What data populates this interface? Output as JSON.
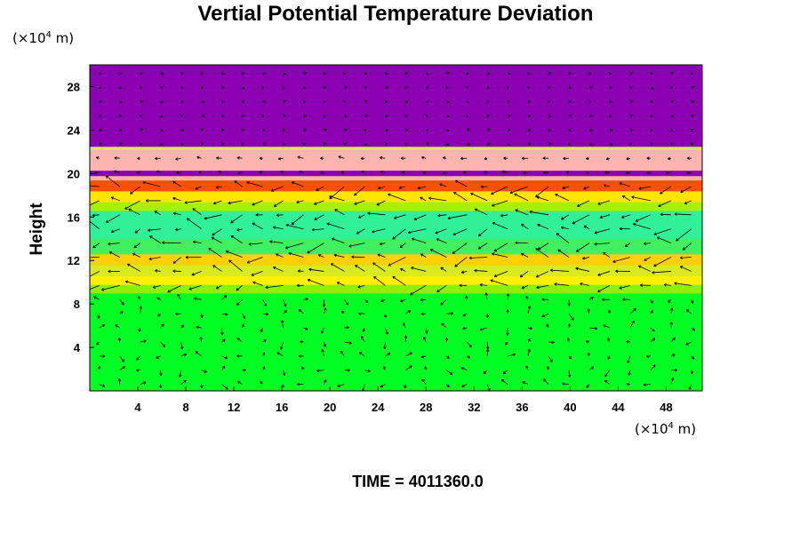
{
  "chart_data": {
    "type": "heatmap",
    "title": "Vertial Potential Temperature Deviation",
    "ylabel": "Height",
    "x_unit": {
      "prefix": "(×10",
      "exp": "4",
      "suffix": " m)"
    },
    "y_unit": {
      "prefix": "(×10",
      "exp": "4",
      "suffix": " m)"
    },
    "xlim": [
      0,
      51
    ],
    "ylim": [
      0,
      30
    ],
    "x_ticks": [
      4,
      8,
      12,
      16,
      20,
      24,
      28,
      32,
      36,
      40,
      44,
      48
    ],
    "y_ticks": [
      4,
      8,
      12,
      16,
      20,
      24,
      28
    ],
    "layers": [
      {
        "y0": 0.0,
        "y1": 9.0,
        "color": "#00ff22"
      },
      {
        "y0": 9.0,
        "y1": 9.8,
        "color": "#8cf000"
      },
      {
        "y0": 9.8,
        "y1": 10.6,
        "color": "#fff000"
      },
      {
        "y0": 10.6,
        "y1": 11.6,
        "color": "#d8ea20"
      },
      {
        "y0": 11.6,
        "y1": 12.6,
        "color": "#ffd000"
      },
      {
        "y0": 12.6,
        "y1": 14.0,
        "color": "#40f060"
      },
      {
        "y0": 14.0,
        "y1": 16.6,
        "color": "#30f098"
      },
      {
        "y0": 16.6,
        "y1": 17.4,
        "color": "#a8f000"
      },
      {
        "y0": 17.4,
        "y1": 18.4,
        "color": "#ffe400"
      },
      {
        "y0": 18.4,
        "y1": 19.4,
        "color": "#ff5000"
      },
      {
        "y0": 19.4,
        "y1": 19.8,
        "color": "#ffb4a8"
      },
      {
        "y0": 19.8,
        "y1": 20.3,
        "color": "#8a00b8"
      },
      {
        "y0": 20.3,
        "y1": 22.2,
        "color": "#ffb4b0"
      },
      {
        "y0": 22.2,
        "y1": 22.5,
        "color": "#d8e860"
      },
      {
        "y0": 22.5,
        "y1": 30.0,
        "color": "#8c00b4"
      }
    ],
    "time_label": "TIME = 4011360.0"
  }
}
